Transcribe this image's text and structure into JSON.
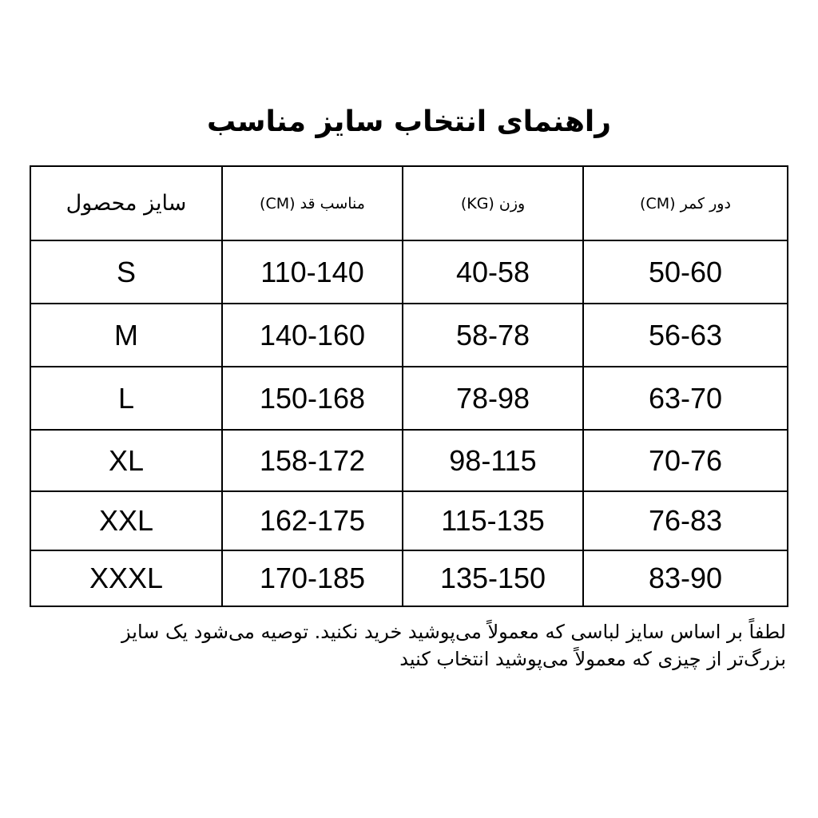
{
  "title": "راهنمای انتخاب سایز مناسب",
  "table": {
    "headers": [
      "سایز محصول",
      "مناسب قد (CM)",
      "وزن (KG)",
      "دور کمر (CM)"
    ],
    "rows": [
      [
        "S",
        "110-140",
        "40-58",
        "50-60"
      ],
      [
        "M",
        "140-160",
        "58-78",
        "56-63"
      ],
      [
        "L",
        "150-168",
        "78-98",
        "63-70"
      ],
      [
        "XL",
        "158-172",
        "98-115",
        "70-76"
      ],
      [
        "XXL",
        "162-175",
        "115-135",
        "76-83"
      ],
      [
        "XXXL",
        "170-185",
        "135-150",
        "83-90"
      ]
    ]
  },
  "note": "لطفاً بر اساس سایز لباسی که معمولاً می‌پوشید خرید نکنید. توصیه می‌شود یک سایز بزرگ‌تر از چیزی که معمولاً می‌پوشید انتخاب کنید"
}
